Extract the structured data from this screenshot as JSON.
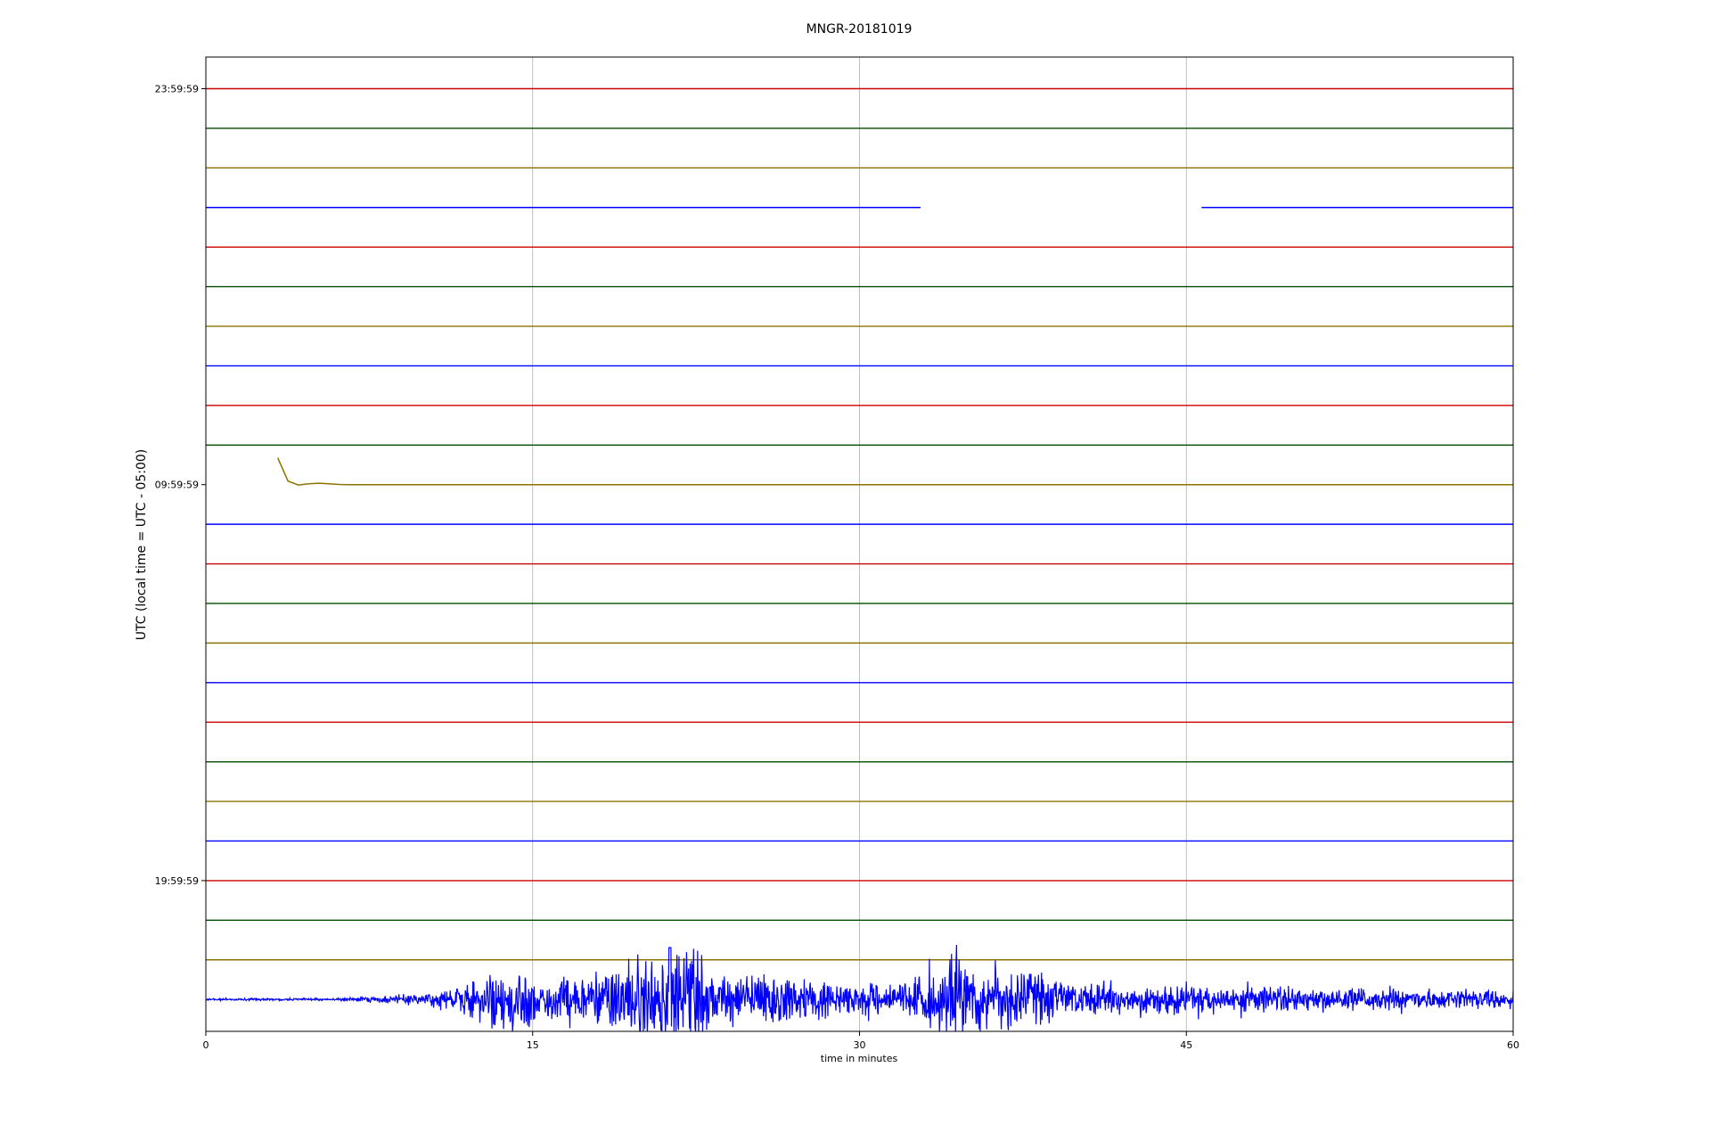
{
  "chart_data": {
    "type": "line",
    "title": "MNGR-20181019",
    "xlabel": "time in minutes",
    "ylabel": "UTC (local time = UTC - 05:00)",
    "xlim": [
      0,
      60
    ],
    "xticks": [
      "0",
      "15",
      "30",
      "45",
      "60"
    ],
    "xtick_values": [
      0,
      15,
      30,
      45,
      60
    ],
    "ytick_labels": [
      "23:59:59",
      "09:59:59",
      "19:59:59"
    ],
    "ytick_rows": [
      0,
      10,
      20
    ],
    "grid": "vertical",
    "trace_colors": [
      "#cc0000",
      "#004d00",
      "#8c7300",
      "#0000ff"
    ],
    "trace_count": 24,
    "gaps": [
      {
        "row": 3,
        "x_from": 32.8,
        "x_to": 45.7
      }
    ],
    "rows_start": [
      {
        "row": 10,
        "x_start": 3.3
      }
    ],
    "events": [
      {
        "row": 10,
        "description": "filter settling transient",
        "x_start": 3.3,
        "x_end": 5.5
      },
      {
        "row": 23,
        "description": "teleseismic earthquake signal",
        "x_start": 6,
        "x_end": 60,
        "peak_minute": 21.3
      }
    ]
  }
}
